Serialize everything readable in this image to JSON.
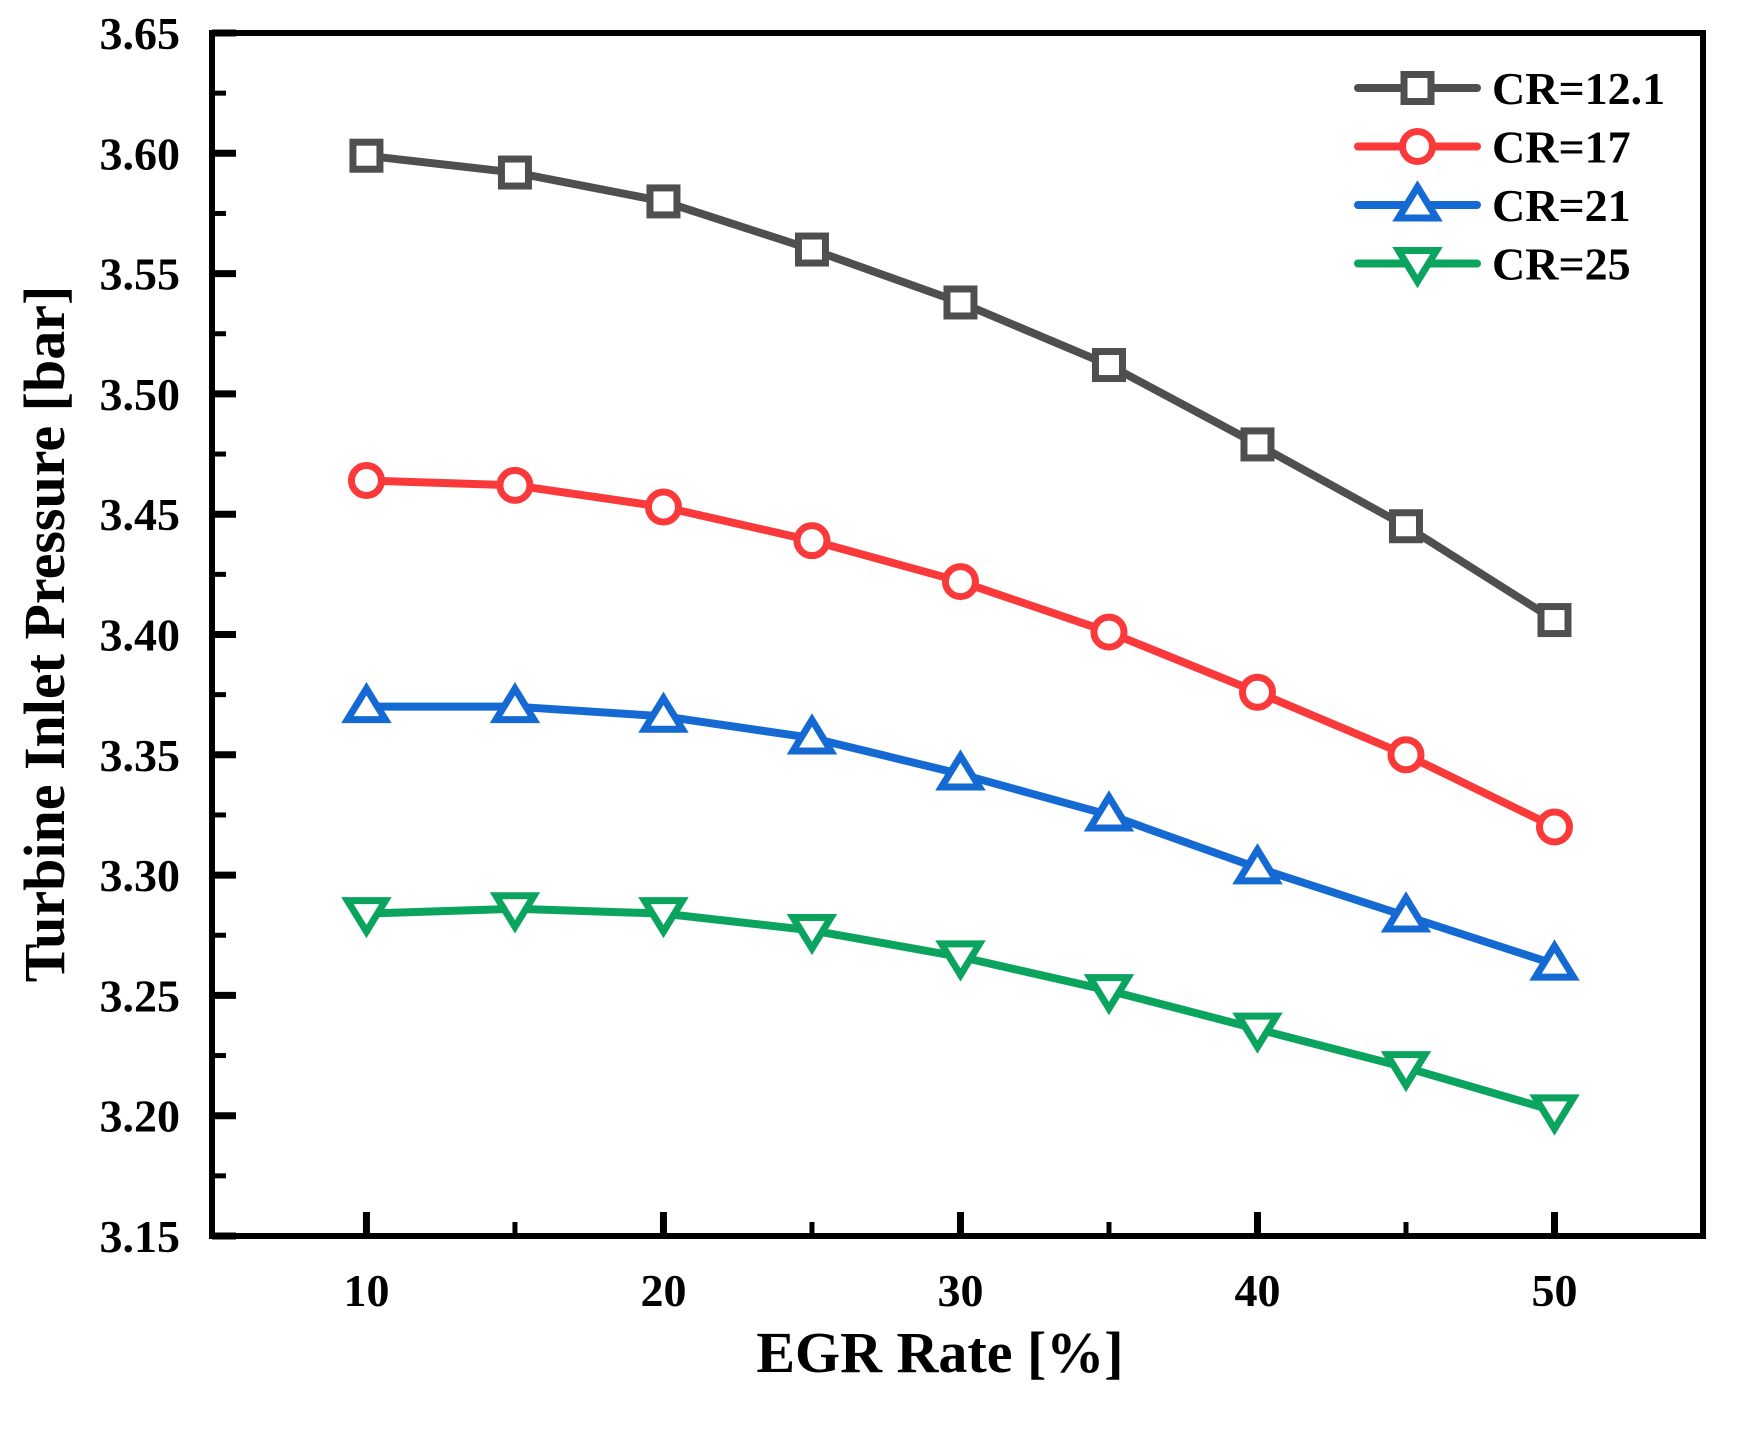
{
  "figure": {
    "background": "#ffffff",
    "axis_color": "#000000",
    "text_color": "#000000"
  },
  "chart_data": {
    "type": "line",
    "title": "",
    "xlabel": "EGR Rate [%]",
    "ylabel": "Turbine Inlet Pressure [bar]",
    "x": [
      10,
      15,
      20,
      25,
      30,
      35,
      40,
      45,
      50
    ],
    "xlim": [
      4.8,
      55
    ],
    "ylim": [
      3.15,
      3.65
    ],
    "xticks_major": [
      10,
      20,
      30,
      40,
      50
    ],
    "xticks_minor": [
      15,
      25,
      35,
      45
    ],
    "yticks_major": [
      3.15,
      3.2,
      3.25,
      3.3,
      3.35,
      3.4,
      3.45,
      3.5,
      3.55,
      3.6,
      3.65
    ],
    "yticks_minor": [
      3.175,
      3.225,
      3.275,
      3.325,
      3.375,
      3.425,
      3.475,
      3.525,
      3.575,
      3.625
    ],
    "ytick_format_decimals": 2,
    "grid": false,
    "legend": {
      "position": "top-right-inside",
      "entries": [
        "CR=12.1",
        "CR=17",
        "CR=21",
        "CR=25"
      ]
    },
    "series": [
      {
        "name": "CR=12.1",
        "color": "#4f4f4f",
        "marker": "square",
        "values": [
          3.599,
          3.592,
          3.58,
          3.56,
          3.538,
          3.512,
          3.479,
          3.445,
          3.406
        ]
      },
      {
        "name": "CR=17",
        "color": "#fa3a3a",
        "marker": "circle",
        "values": [
          3.464,
          3.462,
          3.453,
          3.439,
          3.422,
          3.401,
          3.376,
          3.35,
          3.32
        ]
      },
      {
        "name": "CR=21",
        "color": "#1569d3",
        "marker": "triangle-up",
        "values": [
          3.37,
          3.37,
          3.366,
          3.357,
          3.342,
          3.325,
          3.303,
          3.283,
          3.263
        ]
      },
      {
        "name": "CR=25",
        "color": "#0aa45f",
        "marker": "triangle-down",
        "values": [
          3.284,
          3.286,
          3.284,
          3.277,
          3.266,
          3.252,
          3.236,
          3.22,
          3.202
        ]
      }
    ]
  }
}
